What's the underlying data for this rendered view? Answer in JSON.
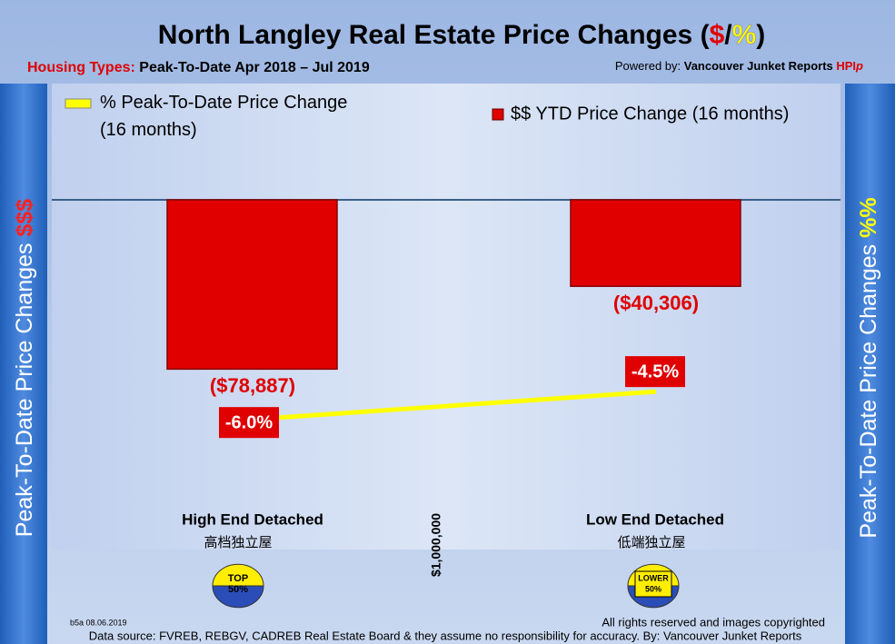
{
  "chart_data": {
    "type": "bar",
    "title_parts": [
      "North Langley Real Estate Price Changes (",
      "$",
      "/",
      "%",
      ")"
    ],
    "subtitle_parts": [
      "Housing Types:",
      " Peak-To-Date Apr 2018 – Jul 2019"
    ],
    "powered_parts": [
      "Powered by: ",
      "Vancouver Junket Reports ",
      "HPI",
      "p"
    ],
    "y_label_parts": [
      "Peak-To-Date Price Changes ",
      "$$$"
    ],
    "y2_label_parts": [
      "Peak-To-Date  Price  Changes ",
      "%%"
    ],
    "categories": [
      "High End Detached",
      "Low End Detached"
    ],
    "category_sublabels": [
      "高档独立屋",
      "低端独立屋"
    ],
    "divider_label": "$1,000,000",
    "badges": [
      [
        "TOP",
        "50%"
      ],
      [
        "LOWER",
        "50%"
      ]
    ],
    "ylim": [
      -163000,
      0
    ],
    "y2lim": [
      -12.9,
      5.7
    ],
    "series": [
      {
        "name": "$$ YTD Price Change (16 months)",
        "type": "bar",
        "color": "#e00000",
        "values": [
          -78887,
          -40306
        ],
        "value_labels": [
          "($78,887)",
          "($40,306)"
        ]
      },
      {
        "name": "% Peak-To-Date Price Change (16 months)",
        "type": "line",
        "axis": "y2",
        "color": "#ffff00",
        "values": [
          -6.0,
          -4.5
        ],
        "value_labels": [
          "-6.0%",
          "-4.5%"
        ]
      }
    ],
    "version_note": "b5a 08.06.2019",
    "rights": "All rights reserved and  images copyrighted",
    "source": "Data source: FVREB, REBGV, CADREB Real Estate Board & they assume no responsibility for accuracy. By: Vancouver Junket Reports"
  }
}
